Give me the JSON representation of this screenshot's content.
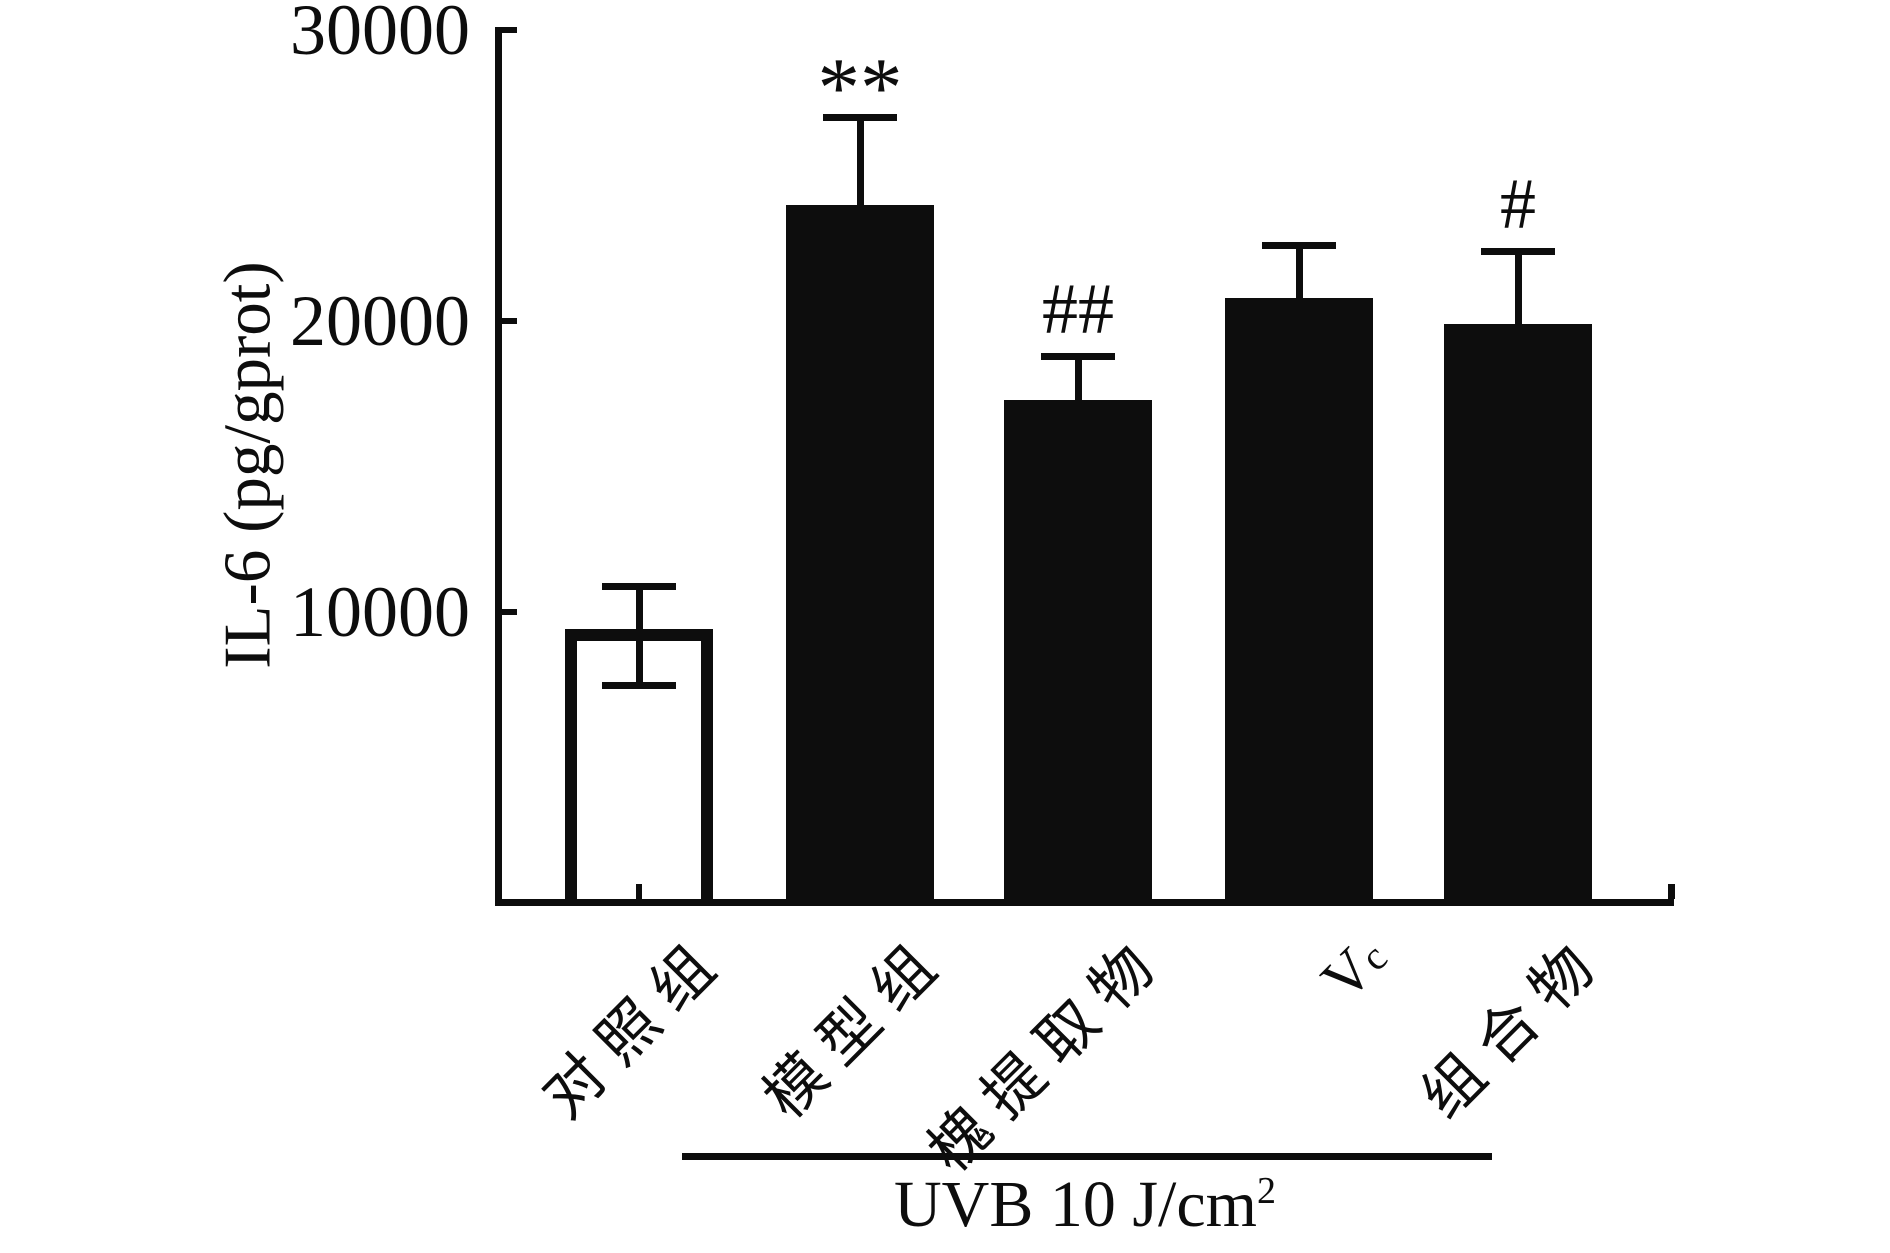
{
  "figure": {
    "background": "#ffffff",
    "ink_color": "#0d0d0d"
  },
  "chart_data": {
    "type": "bar",
    "title": "",
    "ylabel": "IL-6 (pg/gprot)",
    "xlabel": "",
    "categories": [
      "对照组",
      "模型组",
      "槐提取物",
      "Vc",
      "组合物"
    ],
    "values": [
      9200,
      24000,
      17300,
      20800,
      19900
    ],
    "errors": [
      1700,
      3000,
      1500,
      1800,
      2500
    ],
    "bar_styles": [
      "open",
      "filled",
      "filled",
      "filled",
      "filled"
    ],
    "annotations": [
      "",
      "**",
      "##",
      "",
      "#"
    ],
    "yticks": [
      10000,
      20000,
      30000
    ],
    "ytick_labels": [
      "10000",
      "20000",
      "30000"
    ],
    "ylim": [
      0,
      30000
    ],
    "grid": false,
    "legend": null,
    "error_bars": "upper caps on filled bars, both caps on open bar",
    "group_annotation": {
      "label_main": "UVB 10 J/cm",
      "label_sup": "2",
      "spans_categories": [
        "模型组",
        "槐提取物",
        "Vc",
        "组合物"
      ]
    }
  }
}
